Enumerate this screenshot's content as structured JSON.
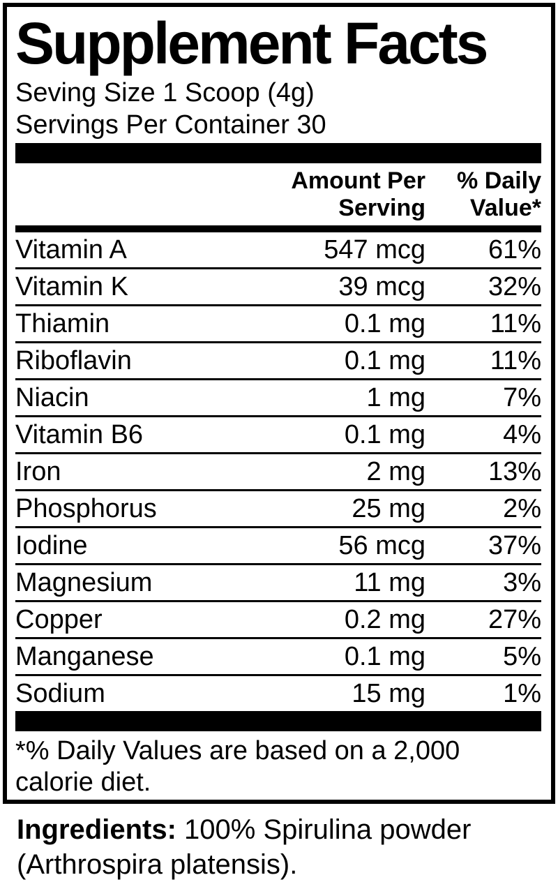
{
  "colors": {
    "text": "#000000",
    "background": "#ffffff"
  },
  "label": {
    "title": "Supplement Facts",
    "serving_size": "Seving Size 1 Scoop (4g)",
    "servings_per_container": "Servings Per Container 30",
    "columns": {
      "amount": "Amount Per Serving",
      "dv": "% Daily Value*"
    },
    "nutrients": [
      {
        "name": "Vitamin A",
        "amount": "547 mcg",
        "dv": "61%"
      },
      {
        "name": "Vitamin K",
        "amount": "39 mcg",
        "dv": "32%"
      },
      {
        "name": "Thiamin",
        "amount": "0.1 mg",
        "dv": "11%"
      },
      {
        "name": "Riboflavin",
        "amount": "0.1 mg",
        "dv": "11%"
      },
      {
        "name": "Niacin",
        "amount": "1 mg",
        "dv": "7%"
      },
      {
        "name": "Vitamin B6",
        "amount": "0.1 mg",
        "dv": "4%"
      },
      {
        "name": "Iron",
        "amount": "2 mg",
        "dv": "13%"
      },
      {
        "name": "Phosphorus",
        "amount": "25 mg",
        "dv": "2%"
      },
      {
        "name": "Iodine",
        "amount": "56 mcg",
        "dv": "37%"
      },
      {
        "name": "Magnesium",
        "amount": "11 mg",
        "dv": "3%"
      },
      {
        "name": "Copper",
        "amount": "0.2 mg",
        "dv": "27%"
      },
      {
        "name": "Manganese",
        "amount": "0.1 mg",
        "dv": "5%"
      },
      {
        "name": "Sodium",
        "amount": "15 mg",
        "dv": "1%"
      }
    ],
    "footnote": "*% Daily Values are based on a 2,000 calorie diet.",
    "ingredients_label": "Ingredients:",
    "ingredients_text": "100% Spirulina powder (Arthrospira platensis)."
  }
}
